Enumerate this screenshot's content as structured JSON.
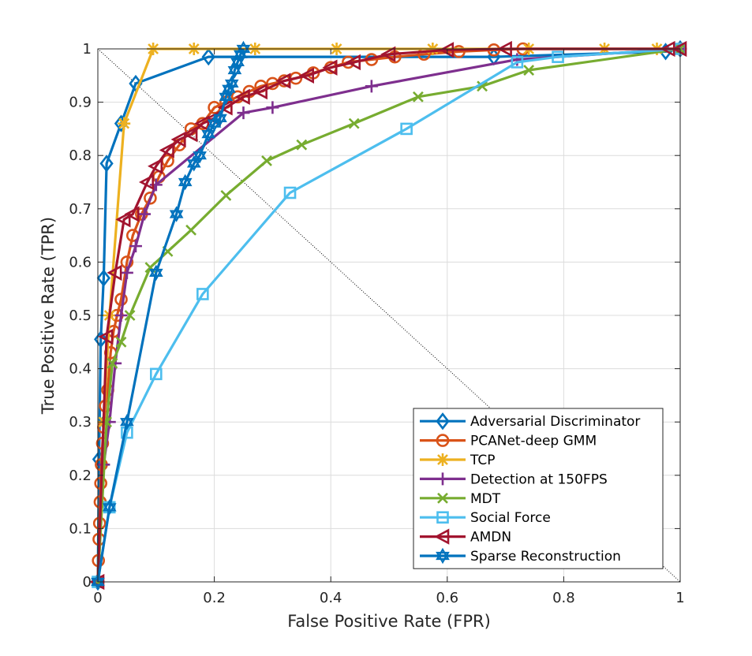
{
  "chart_data": {
    "type": "line",
    "title": "",
    "xlabel": "False Positive Rate (FPR)",
    "ylabel": "True Positive Rate (TPR)",
    "xlim": [
      0,
      1
    ],
    "ylim": [
      0,
      1
    ],
    "x_ticks": [
      0,
      0.2,
      0.4,
      0.6,
      0.8,
      1
    ],
    "x_tick_labels": [
      "0",
      "0.2",
      "0.4",
      "0.6",
      "0.8",
      "1"
    ],
    "y_ticks": [
      0,
      0.1,
      0.2,
      0.3,
      0.4,
      0.5,
      0.6,
      0.7,
      0.8,
      0.9,
      1
    ],
    "y_tick_labels": [
      "0",
      "0.1",
      "0.2",
      "0.3",
      "0.4",
      "0.5",
      "0.6",
      "0.7",
      "0.8",
      "0.9",
      "1"
    ],
    "grid": true,
    "legend_position": "bottom-right",
    "reference_line": {
      "x": [
        0,
        1
      ],
      "y": [
        1,
        0
      ],
      "style": "dotted"
    },
    "series": [
      {
        "name": "Adversarial Discriminator",
        "color": "#0072BD",
        "marker": "diamond",
        "x": [
          0,
          0.002,
          0.005,
          0.01,
          0.015,
          0.04,
          0.065,
          0.19,
          0.68,
          0.975,
          1
        ],
        "y": [
          0,
          0.23,
          0.455,
          0.57,
          0.785,
          0.86,
          0.935,
          0.985,
          0.985,
          0.995,
          1
        ]
      },
      {
        "name": "PCANet-deep GMM",
        "color": "#D95319",
        "marker": "circle",
        "x": [
          0,
          0.001,
          0.002,
          0.003,
          0.004,
          0.005,
          0.006,
          0.008,
          0.01,
          0.013,
          0.017,
          0.022,
          0.027,
          0.033,
          0.04,
          0.05,
          0.06,
          0.075,
          0.09,
          0.105,
          0.12,
          0.14,
          0.16,
          0.18,
          0.2,
          0.22,
          0.24,
          0.26,
          0.28,
          0.3,
          0.32,
          0.34,
          0.37,
          0.4,
          0.43,
          0.47,
          0.51,
          0.56,
          0.62,
          0.68,
          0.73,
          1
        ],
        "y": [
          0,
          0.04,
          0.08,
          0.11,
          0.15,
          0.185,
          0.22,
          0.26,
          0.29,
          0.33,
          0.36,
          0.43,
          0.47,
          0.5,
          0.53,
          0.6,
          0.65,
          0.69,
          0.72,
          0.76,
          0.79,
          0.82,
          0.85,
          0.86,
          0.89,
          0.9,
          0.91,
          0.92,
          0.93,
          0.935,
          0.94,
          0.945,
          0.955,
          0.965,
          0.975,
          0.98,
          0.985,
          0.99,
          0.995,
          0.998,
          1,
          1
        ]
      },
      {
        "name": "TCP",
        "color": "#EDB120",
        "marker": "asterisk",
        "x": [
          0,
          0.01,
          0.02,
          0.045,
          0.095,
          0.165,
          0.27,
          0.41,
          0.575,
          0.74,
          0.87,
          0.96,
          1
        ],
        "y": [
          0,
          0.3,
          0.5,
          0.86,
          1,
          1,
          1,
          1,
          1,
          1,
          1,
          1,
          1
        ]
      },
      {
        "name": "Detection at 150FPS",
        "color": "#7E2F8E",
        "marker": "plus",
        "x": [
          0,
          0.01,
          0.02,
          0.03,
          0.04,
          0.05,
          0.065,
          0.08,
          0.1,
          0.25,
          0.3,
          0.47,
          0.72,
          1
        ],
        "y": [
          0,
          0.22,
          0.3,
          0.41,
          0.5,
          0.58,
          0.63,
          0.69,
          0.745,
          0.88,
          0.89,
          0.93,
          0.98,
          1
        ]
      },
      {
        "name": "MDT",
        "color": "#77AC30",
        "marker": "x",
        "x": [
          0,
          0.015,
          0.025,
          0.04,
          0.055,
          0.09,
          0.12,
          0.16,
          0.22,
          0.29,
          0.35,
          0.44,
          0.55,
          0.66,
          0.74,
          1
        ],
        "y": [
          0,
          0.3,
          0.41,
          0.45,
          0.5,
          0.59,
          0.62,
          0.66,
          0.725,
          0.79,
          0.82,
          0.86,
          0.91,
          0.93,
          0.96,
          1
        ]
      },
      {
        "name": "Social Force",
        "color": "#4DBEEE",
        "marker": "square",
        "x": [
          0,
          0.02,
          0.05,
          0.1,
          0.18,
          0.33,
          0.53,
          0.72,
          0.79,
          1
        ],
        "y": [
          0,
          0.14,
          0.28,
          0.39,
          0.54,
          0.73,
          0.85,
          0.975,
          0.985,
          1
        ]
      },
      {
        "name": "AMDN",
        "color": "#A2142F",
        "marker": "triangle-left",
        "x": [
          0,
          0.015,
          0.03,
          0.045,
          0.06,
          0.085,
          0.1,
          0.12,
          0.14,
          0.16,
          0.18,
          0.2,
          0.22,
          0.25,
          0.28,
          0.32,
          0.36,
          0.4,
          0.44,
          0.5,
          0.6,
          0.7,
          0.98,
          1
        ],
        "y": [
          0,
          0.46,
          0.58,
          0.68,
          0.69,
          0.75,
          0.78,
          0.81,
          0.83,
          0.84,
          0.86,
          0.87,
          0.89,
          0.91,
          0.92,
          0.94,
          0.95,
          0.965,
          0.975,
          0.99,
          0.998,
          1,
          1,
          1
        ]
      },
      {
        "name": "Sparse Reconstruction",
        "color": "#0072BD",
        "marker": "hexagram",
        "x": [
          0,
          0.02,
          0.05,
          0.1,
          0.135,
          0.15,
          0.165,
          0.175,
          0.19,
          0.2,
          0.21,
          0.22,
          0.225,
          0.23,
          0.235,
          0.24,
          0.245,
          0.25
        ],
        "y": [
          0,
          0.14,
          0.3,
          0.58,
          0.69,
          0.75,
          0.785,
          0.8,
          0.84,
          0.86,
          0.87,
          0.91,
          0.925,
          0.935,
          0.96,
          0.975,
          0.99,
          1
        ]
      }
    ]
  }
}
